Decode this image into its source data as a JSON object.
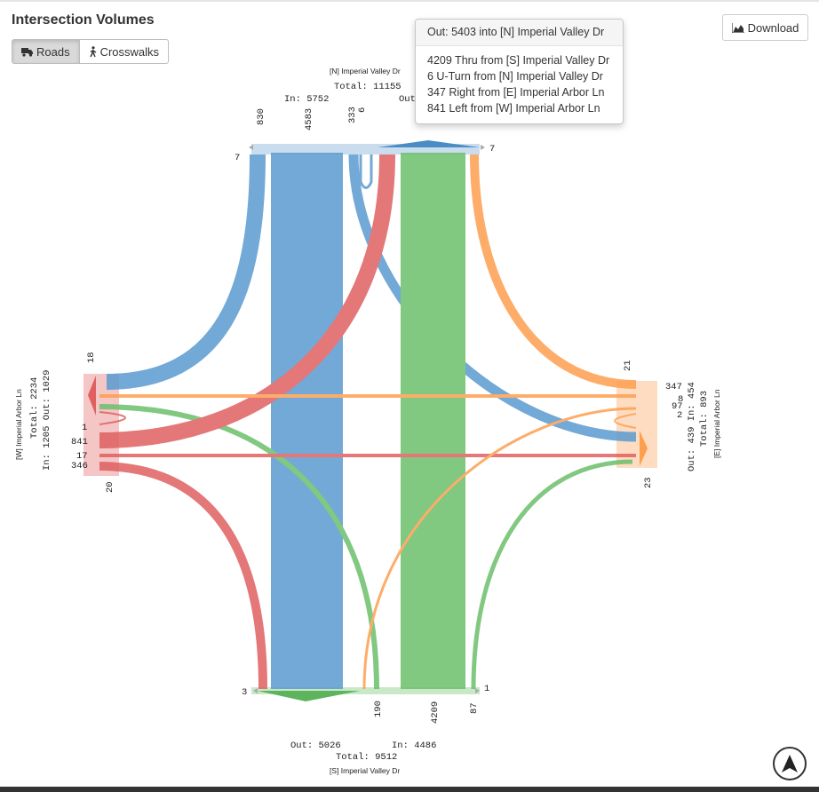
{
  "title": "Intersection Volumes",
  "tabs": {
    "roads": "Roads",
    "crosswalks": "Crosswalks"
  },
  "download_label": "Download",
  "tooltip": {
    "header": "Out: 5403 into [N] Imperial Valley Dr",
    "lines": [
      "4209 Thru from [S] Imperial Valley Dr",
      "6 U-Turn from [N] Imperial Valley Dr",
      "347 Right from [E] Imperial Arbor Ln",
      "841 Left from [W] Imperial Arbor Ln"
    ]
  },
  "north": {
    "name": "[N] Imperial Valley Dr",
    "total": "Total: 11155",
    "in": "In: 5752",
    "out": "Out",
    "movements": [
      "830",
      "4583",
      "333",
      "6"
    ],
    "ped_left": "7",
    "ped_right": "7"
  },
  "south": {
    "name": "[S] Imperial Valley Dr",
    "total": "Total: 9512",
    "in": "In: 4486",
    "out": "Out: 5026",
    "movements": [
      "190",
      "4209",
      "87"
    ],
    "ped_left": "3",
    "ped_right": "1"
  },
  "west": {
    "name": "[W] Imperial Arbor Ln",
    "total": "Total: 2234",
    "in_out": "In: 1205 Out: 1029",
    "movements": [
      "1",
      "841",
      "17",
      "346"
    ],
    "ped_top": "18",
    "ped_bottom": "20"
  },
  "east": {
    "name": "[E] Imperial Arbor Ln",
    "total": "Total: 893",
    "in_out": "Out: 439  In: 454",
    "movements": [
      "347",
      "8",
      "97",
      "2"
    ],
    "ped_top": "21",
    "ped_bottom": "23"
  },
  "colors": {
    "north": "#6ea2cf",
    "south": "#74c476",
    "east": "#fdae6b",
    "west": "#e06666"
  }
}
